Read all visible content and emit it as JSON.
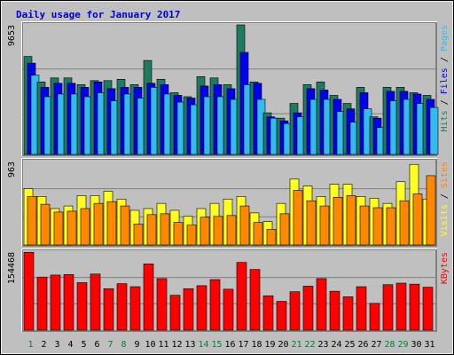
{
  "chart_data": {
    "title": "Daily usage for January 2017",
    "type": "bar",
    "categories": [
      "1",
      "2",
      "3",
      "4",
      "5",
      "6",
      "7",
      "8",
      "9",
      "10",
      "11",
      "12",
      "13",
      "14",
      "15",
      "16",
      "17",
      "18",
      "19",
      "20",
      "21",
      "22",
      "23",
      "24",
      "25",
      "26",
      "27",
      "28",
      "29",
      "30",
      "31"
    ],
    "weekend_days": [
      1,
      7,
      8,
      14,
      15,
      21,
      22,
      28,
      29
    ],
    "colors": {
      "hits": "#1e7a60",
      "files": "#0000ee",
      "pages": "#33bbee",
      "visits": "#ffff22",
      "sites": "#ff8800",
      "kbytes": "#ff0000",
      "weekday_label": "#000000",
      "weekend_label": "#117744",
      "title": "#0000cc",
      "panel_bg": "#c0c0c0"
    },
    "panels": [
      {
        "id": "hits-files-pages",
        "max_label": "9653",
        "ylim": [
          0,
          9653
        ],
        "legend": [
          {
            "text": "Hits",
            "color": "#1e7a60"
          },
          {
            "text": "Files",
            "color": "#0000ee"
          },
          {
            "text": "Pages",
            "color": "#33bbee"
          }
        ],
        "series": [
          {
            "name": "Hits",
            "color": "#1e7a60",
            "values": [
              7300,
              5400,
              5700,
              5700,
              5200,
              5500,
              5500,
              5600,
              5200,
              7000,
              5600,
              4600,
              4300,
              5800,
              5700,
              5200,
              9650,
              5400,
              3100,
              2700,
              3800,
              5200,
              5400,
              4400,
              3800,
              5000,
              2800,
              5000,
              5000,
              4600,
              4400
            ]
          },
          {
            "name": "Files",
            "color": "#0000ee",
            "values": [
              6800,
              5000,
              5300,
              5300,
              5000,
              5400,
              4900,
              5000,
              5000,
              5300,
              5200,
              4400,
              4200,
              5100,
              5200,
              4900,
              7600,
              5300,
              2800,
              2500,
              3100,
              4900,
              4800,
              4100,
              3400,
              4600,
              2700,
              4700,
              4700,
              4500,
              4100
            ]
          },
          {
            "name": "Pages",
            "color": "#33bbee",
            "values": [
              5900,
              4300,
              4500,
              4500,
              4300,
              4600,
              4000,
              4500,
              4200,
              5000,
              4500,
              3900,
              3700,
              4300,
              4300,
              4100,
              5200,
              4100,
              2700,
              2300,
              2800,
              4100,
              4100,
              3200,
              2400,
              3400,
              2000,
              4000,
              4100,
              3800,
              3500
            ]
          }
        ]
      },
      {
        "id": "visits-sites",
        "max_label": "963",
        "ylim": [
          0,
          963
        ],
        "legend": [
          {
            "text": "Visits",
            "color": "#ffff22"
          },
          {
            "text": "Sites",
            "color": "#ff8800"
          }
        ],
        "series": [
          {
            "name": "Visits",
            "color": "#ffff22",
            "values": [
              650,
              560,
              420,
              450,
              570,
              570,
              620,
              530,
              400,
              420,
              480,
              400,
              330,
              420,
              480,
              530,
              560,
              370,
              270,
              480,
              760,
              680,
              560,
              700,
              700,
              560,
              540,
              480,
              730,
              930,
              530
            ]
          },
          {
            "name": "Sites",
            "color": "#ff8800",
            "values": [
              560,
              470,
              380,
              390,
              420,
              480,
              500,
              450,
              240,
              350,
              360,
              260,
              230,
              320,
              330,
              340,
              450,
              260,
              180,
              360,
              630,
              510,
              450,
              550,
              570,
              450,
              430,
              430,
              510,
              590,
              800
            ]
          }
        ]
      },
      {
        "id": "kbytes",
        "max_label": "154468",
        "ylim": [
          0,
          154468
        ],
        "legend": [
          {
            "text": "KBytes",
            "color": "#ff0000"
          }
        ],
        "series": [
          {
            "name": "KBytes",
            "color": "#ff0000",
            "values": [
              154000,
              105000,
              109000,
              110000,
              94000,
              111000,
              82000,
              92000,
              86000,
              131000,
              102000,
              69000,
              82000,
              88000,
              100000,
              81000,
              134000,
              120000,
              68000,
              57000,
              76000,
              87000,
              102000,
              77000,
              66000,
              86000,
              53000,
              90000,
              93000,
              91000,
              85000
            ]
          }
        ]
      }
    ]
  }
}
